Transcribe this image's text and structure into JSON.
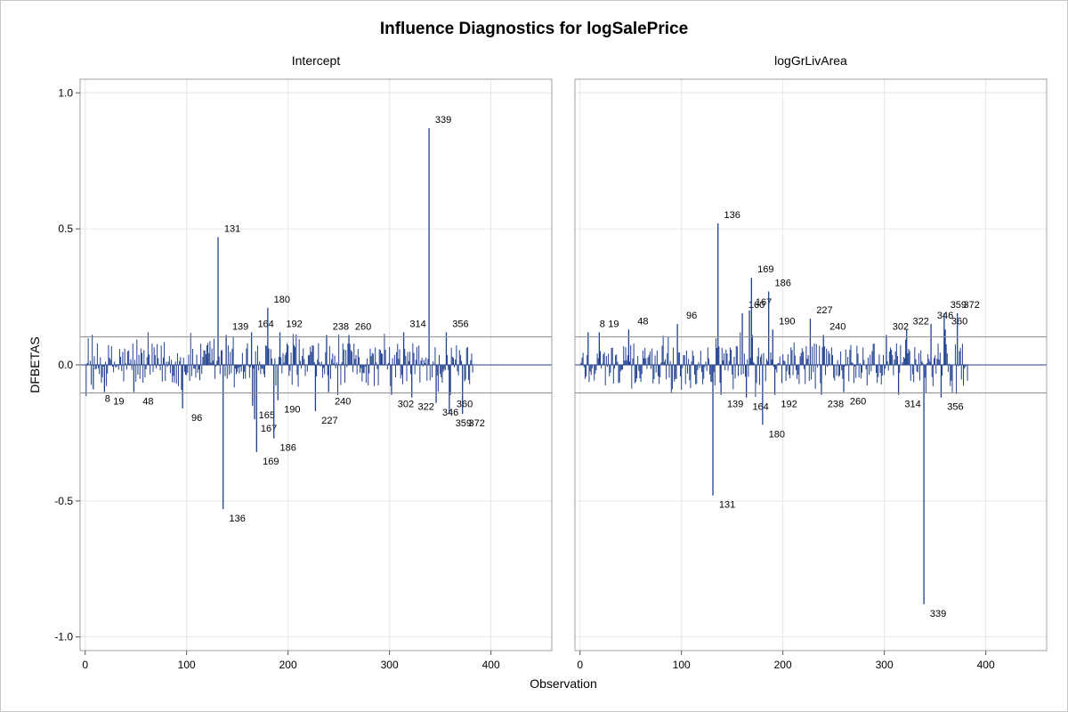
{
  "title": "Influence Diagnostics for logSalePrice",
  "chart_data": {
    "type": "bar",
    "title": "Influence Diagnostics for logSalePrice",
    "xlabel": "Observation",
    "ylabel": "DFBETAS",
    "xlim": [
      -5,
      460
    ],
    "ylim": [
      -1.05,
      1.05
    ],
    "x_ticks": [
      0,
      100,
      200,
      300,
      400
    ],
    "y_ticks": [
      -1.0,
      -0.5,
      0.0,
      0.5,
      1.0
    ],
    "y_tick_labels": [
      "-1.0",
      "-0.5",
      "0.0",
      "0.5",
      "1.0"
    ],
    "x_tick_labels": [
      "0",
      "100",
      "200",
      "300",
      "400"
    ],
    "grid": true,
    "bar_color": "#1f3f8f",
    "ref_line_color": "#8c8c8c",
    "cutoff": 0.103,
    "n_obs": 382,
    "panels": [
      {
        "name": "Intercept",
        "labeled_points": [
          {
            "obs": 8,
            "value": -0.09
          },
          {
            "obs": 19,
            "value": -0.1
          },
          {
            "obs": 48,
            "value": -0.1
          },
          {
            "obs": 96,
            "value": -0.16
          },
          {
            "obs": 131,
            "value": 0.47
          },
          {
            "obs": 136,
            "value": -0.53
          },
          {
            "obs": 139,
            "value": 0.11
          },
          {
            "obs": 164,
            "value": 0.12
          },
          {
            "obs": 165,
            "value": -0.15
          },
          {
            "obs": 167,
            "value": -0.2
          },
          {
            "obs": 169,
            "value": -0.32
          },
          {
            "obs": 180,
            "value": 0.21
          },
          {
            "obs": 186,
            "value": -0.27
          },
          {
            "obs": 190,
            "value": -0.13
          },
          {
            "obs": 192,
            "value": 0.12
          },
          {
            "obs": 227,
            "value": -0.17
          },
          {
            "obs": 238,
            "value": 0.11
          },
          {
            "obs": 240,
            "value": -0.1
          },
          {
            "obs": 260,
            "value": 0.11
          },
          {
            "obs": 302,
            "value": -0.11
          },
          {
            "obs": 314,
            "value": 0.12
          },
          {
            "obs": 322,
            "value": -0.12
          },
          {
            "obs": 339,
            "value": 0.87
          },
          {
            "obs": 346,
            "value": -0.14
          },
          {
            "obs": 356,
            "value": 0.12
          },
          {
            "obs": 359,
            "value": -0.18
          },
          {
            "obs": 360,
            "value": -0.11
          },
          {
            "obs": 372,
            "value": -0.18
          }
        ]
      },
      {
        "name": "logGrLivArea",
        "labeled_points": [
          {
            "obs": 8,
            "value": 0.12
          },
          {
            "obs": 19,
            "value": 0.12
          },
          {
            "obs": 48,
            "value": 0.13
          },
          {
            "obs": 96,
            "value": 0.15
          },
          {
            "obs": 131,
            "value": -0.48
          },
          {
            "obs": 136,
            "value": 0.52
          },
          {
            "obs": 139,
            "value": -0.11
          },
          {
            "obs": 160,
            "value": 0.19
          },
          {
            "obs": 164,
            "value": -0.12
          },
          {
            "obs": 167,
            "value": 0.2
          },
          {
            "obs": 169,
            "value": 0.32
          },
          {
            "obs": 180,
            "value": -0.22
          },
          {
            "obs": 186,
            "value": 0.27
          },
          {
            "obs": 190,
            "value": 0.13
          },
          {
            "obs": 192,
            "value": -0.11
          },
          {
            "obs": 227,
            "value": 0.17
          },
          {
            "obs": 238,
            "value": -0.11
          },
          {
            "obs": 240,
            "value": 0.11
          },
          {
            "obs": 260,
            "value": -0.1
          },
          {
            "obs": 302,
            "value": 0.11
          },
          {
            "obs": 314,
            "value": -0.11
          },
          {
            "obs": 322,
            "value": 0.13
          },
          {
            "obs": 339,
            "value": -0.88
          },
          {
            "obs": 346,
            "value": 0.15
          },
          {
            "obs": 356,
            "value": -0.12
          },
          {
            "obs": 359,
            "value": 0.19
          },
          {
            "obs": 360,
            "value": 0.13
          },
          {
            "obs": 372,
            "value": 0.19
          }
        ]
      }
    ]
  }
}
